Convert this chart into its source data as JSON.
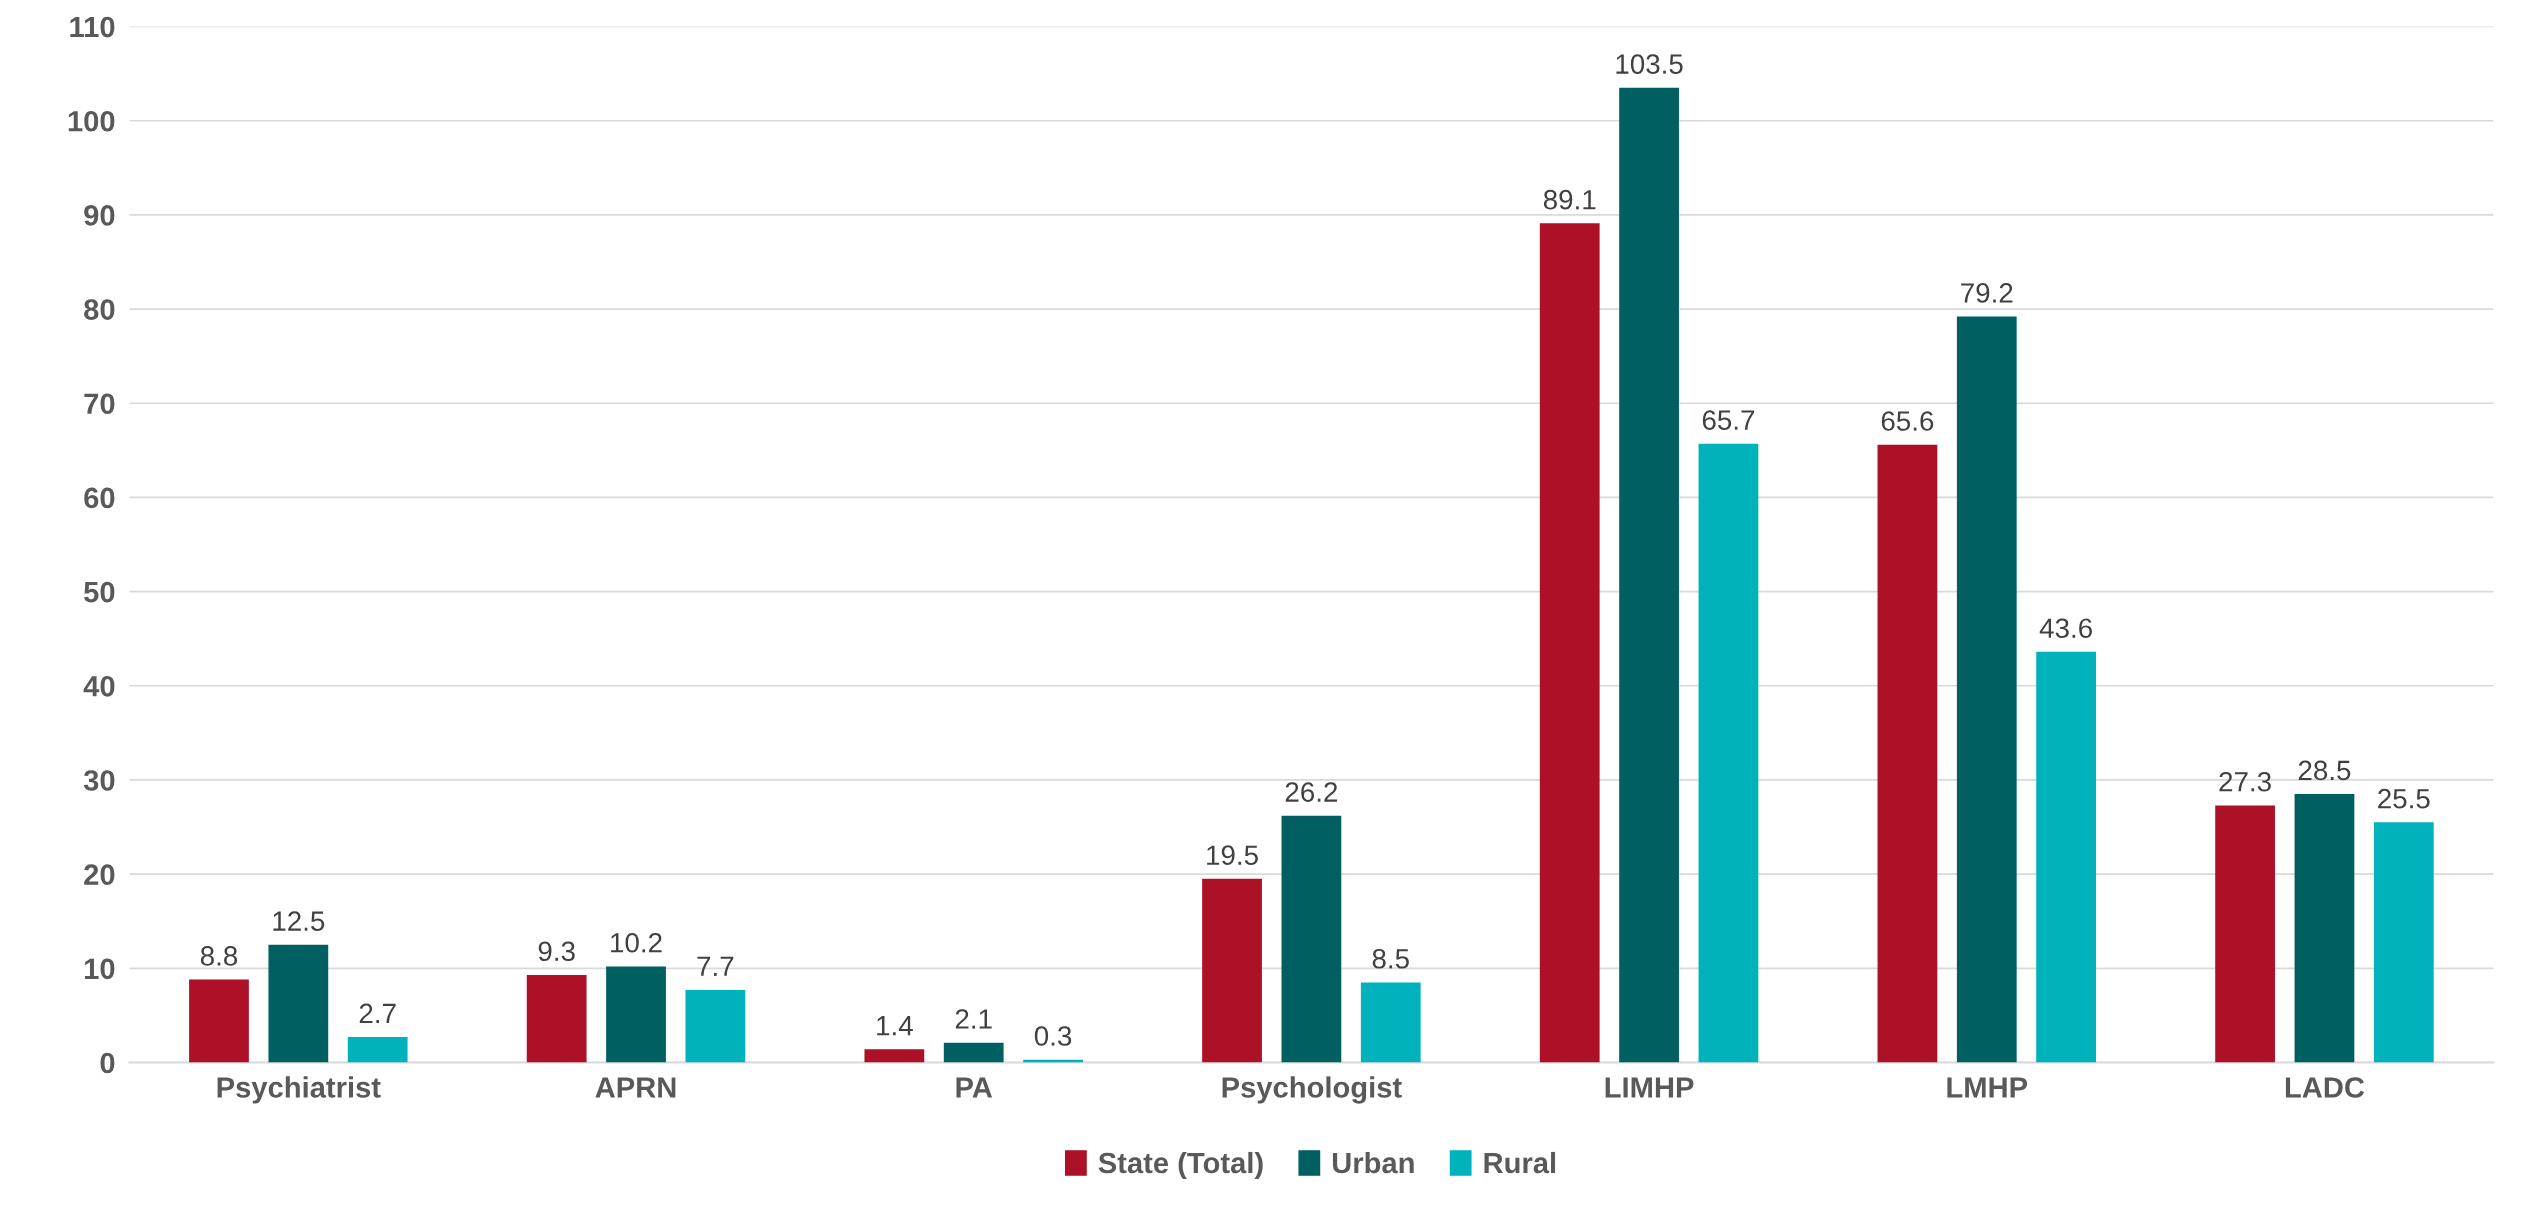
{
  "chart_data": {
    "type": "bar",
    "categories": [
      "Psychiatrist",
      "APRN",
      "PA",
      "Psychologist",
      "LIMHP",
      "LMHP",
      "LADC"
    ],
    "series": [
      {
        "name": "State (Total)",
        "color": "#ad1128",
        "values": [
          8.8,
          9.3,
          1.4,
          19.5,
          89.1,
          65.6,
          27.3
        ]
      },
      {
        "name": "Urban",
        "color": "#005f60",
        "values": [
          12.5,
          10.2,
          2.1,
          26.2,
          103.5,
          79.2,
          28.5
        ]
      },
      {
        "name": "Rural",
        "color": "#00b2bb",
        "values": [
          2.7,
          7.7,
          0.3,
          8.5,
          65.7,
          43.6,
          25.5
        ]
      }
    ],
    "ylim": [
      0,
      110
    ],
    "yticks": [
      0,
      10,
      20,
      30,
      40,
      50,
      60,
      70,
      80,
      90,
      100,
      110
    ],
    "grid": "y",
    "legend": "bottom",
    "data_labels": true
  }
}
